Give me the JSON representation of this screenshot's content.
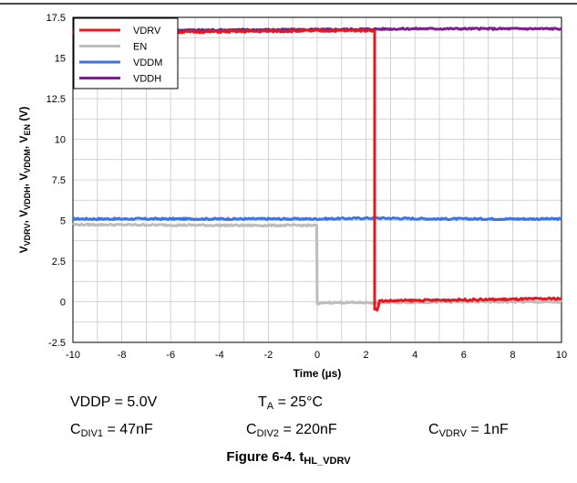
{
  "chart_data": {
    "type": "line",
    "xlabel_main": "Time (",
    "xlabel_unit": "µs",
    "xlabel_close": ")",
    "ylabel_parts": [
      {
        "t": "V",
        "sub": "VDRV",
        "sep": ", "
      },
      {
        "t": "V",
        "sub": "VDDH",
        "sep": ", "
      },
      {
        "t": "V",
        "sub": "VDDM",
        "sep": ", "
      },
      {
        "t": "V",
        "sub": "EN",
        "sep": " (V)"
      }
    ],
    "xlim": [
      -10,
      10
    ],
    "ylim": [
      -2.5,
      17.5
    ],
    "x_ticks": [
      "-10",
      "-8",
      "-6",
      "-4",
      "-2",
      "0",
      "2",
      "4",
      "6",
      "8",
      "10"
    ],
    "y_ticks": [
      "-2.5",
      "0",
      "2.5",
      "5",
      "7.5",
      "10",
      "12.5",
      "15",
      "17.5"
    ],
    "grid": true,
    "legend_position": "top-left",
    "series": [
      {
        "name": "VDRV",
        "color": "#e8171f",
        "points": [
          [
            -10,
            16.55
          ],
          [
            -6,
            16.6
          ],
          [
            -2,
            16.65
          ],
          [
            2,
            16.7
          ],
          [
            2.35,
            16.7
          ],
          [
            2.35,
            -0.4
          ],
          [
            2.45,
            -0.55
          ],
          [
            2.55,
            0.05
          ],
          [
            4,
            0.08
          ],
          [
            6,
            0.12
          ],
          [
            8,
            0.15
          ],
          [
            10,
            0.2
          ]
        ]
      },
      {
        "name": "EN",
        "color": "#bdbdbd",
        "points": [
          [
            -10,
            4.75
          ],
          [
            -6,
            4.72
          ],
          [
            -3,
            4.7
          ],
          [
            -0.02,
            4.7
          ],
          [
            0.0,
            -0.15
          ],
          [
            0.3,
            -0.05
          ],
          [
            3,
            -0.05
          ],
          [
            6,
            0.0
          ],
          [
            10,
            -0.02
          ]
        ]
      },
      {
        "name": "VDDM",
        "color": "#3a73e6",
        "points": [
          [
            -10,
            5.1
          ],
          [
            -5,
            5.1
          ],
          [
            0,
            5.1
          ],
          [
            2.4,
            5.15
          ],
          [
            5,
            5.1
          ],
          [
            10,
            5.1
          ]
        ]
      },
      {
        "name": "VDDH",
        "color": "#7b1f8a",
        "points": [
          [
            -10,
            16.7
          ],
          [
            -5,
            16.72
          ],
          [
            0,
            16.75
          ],
          [
            4,
            16.8
          ],
          [
            8,
            16.8
          ],
          [
            10,
            16.8
          ]
        ]
      }
    ]
  },
  "conditions": {
    "vddp_label": "VDDP = 5.0V",
    "ta_main": "T",
    "ta_sub": "A",
    "ta_value": " = 25°C",
    "cdiv1_main": "C",
    "cdiv1_sub": "DIV1",
    "cdiv1_value": " = 47nF",
    "cdiv2_main": "C",
    "cdiv2_sub": "DIV2",
    "cdiv2_value": " = 220nF",
    "cvdrv_main": "C",
    "cvdrv_sub": "VDRV",
    "cvdrv_value": " = 1nF"
  },
  "caption": {
    "prefix": "Figure 6-4. t",
    "sub": "HL_VDRV"
  }
}
